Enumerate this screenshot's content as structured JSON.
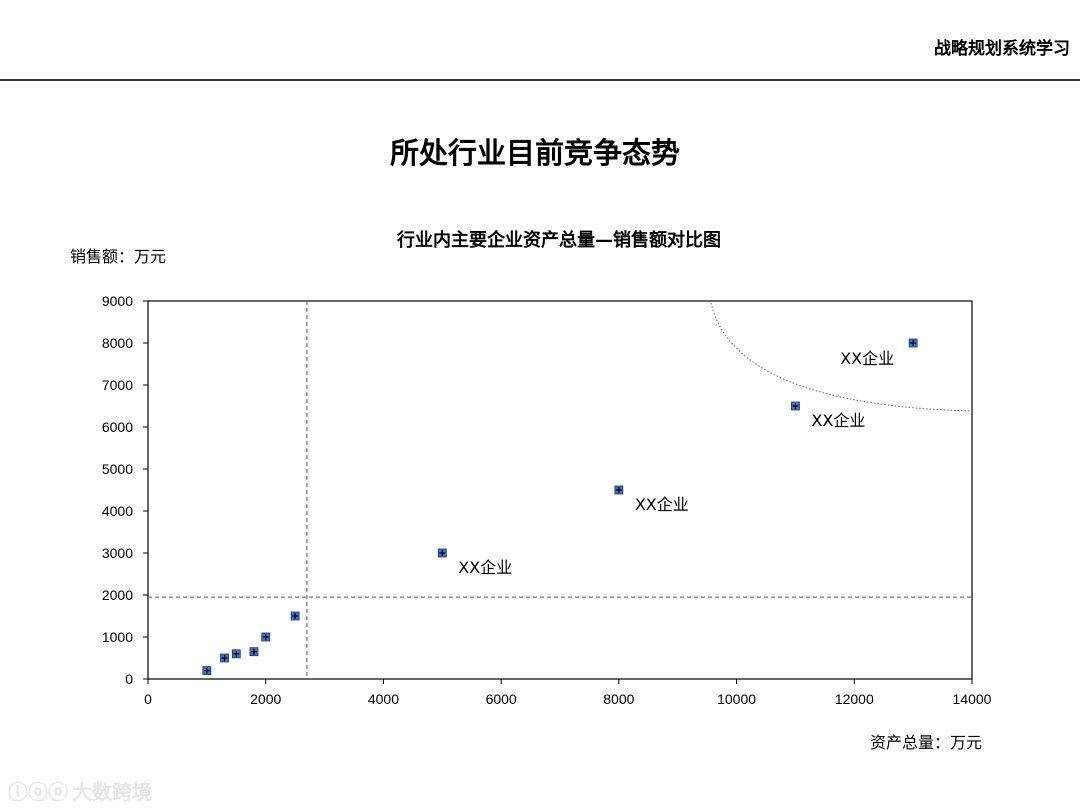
{
  "header": {
    "title": "战略规划系统学习"
  },
  "page": {
    "title": "所处行业目前竞争态势"
  },
  "watermark": {
    "logo": "ⓛⓞⓞ",
    "text": "大数跨境"
  },
  "chart_data": {
    "type": "scatter",
    "title": "行业内主要企业资产总量—销售额对比图",
    "xlabel": "资产总量：万元",
    "ylabel": "销售额：万元",
    "xlim": [
      0,
      14000
    ],
    "ylim": [
      0,
      9000
    ],
    "xticks": [
      0,
      2000,
      4000,
      6000,
      8000,
      10000,
      12000,
      14000
    ],
    "yticks": [
      0,
      1000,
      2000,
      3000,
      4000,
      5000,
      6000,
      7000,
      8000,
      9000
    ],
    "grid": false,
    "marker_color": "#4472c4",
    "points": [
      {
        "x": 1000,
        "y": 200,
        "label": ""
      },
      {
        "x": 1300,
        "y": 500,
        "label": ""
      },
      {
        "x": 1500,
        "y": 600,
        "label": ""
      },
      {
        "x": 1800,
        "y": 650,
        "label": ""
      },
      {
        "x": 2000,
        "y": 1000,
        "label": ""
      },
      {
        "x": 2500,
        "y": 1500,
        "label": ""
      },
      {
        "x": 5000,
        "y": 3000,
        "label": "XX企业"
      },
      {
        "x": 8000,
        "y": 4500,
        "label": "XX企业"
      },
      {
        "x": 11000,
        "y": 6500,
        "label": "XX企业"
      },
      {
        "x": 13000,
        "y": 8000,
        "label": "XX企业"
      }
    ],
    "reference_lines": {
      "x": 2700,
      "y": 1950
    }
  }
}
